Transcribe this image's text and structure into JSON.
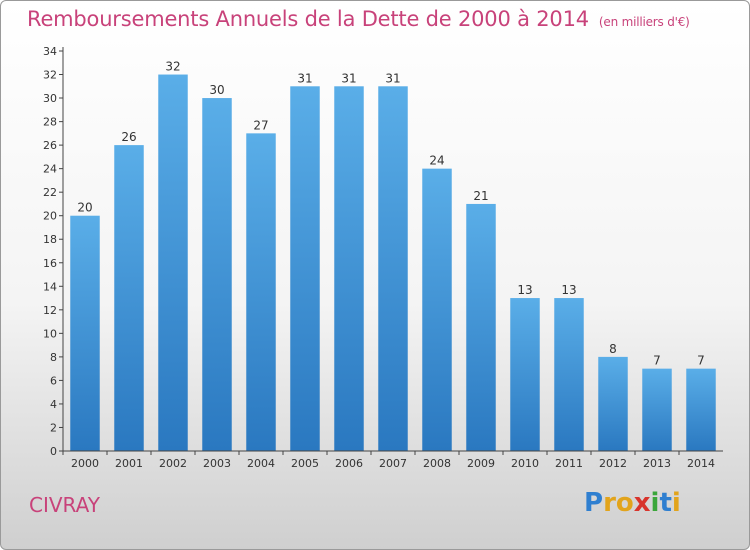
{
  "header": {
    "title": "Remboursements Annuels de la Dette de 2000 à 2014",
    "unit": "(en milliers d'€)"
  },
  "footer": {
    "commune": "CIVRAY",
    "logo_letters": [
      "P",
      "r",
      "o",
      "x",
      "i",
      "t",
      "i"
    ]
  },
  "colors": {
    "title": "#c8427a",
    "bar_top": "#5aaee8",
    "bar_bottom": "#2a78c0",
    "axis": "#444444",
    "text": "#333333"
  },
  "chart_data": {
    "type": "bar",
    "title": "Remboursements Annuels de la Dette de 2000 à 2014",
    "subtitle": "(en milliers d'€)",
    "xlabel": "",
    "ylabel": "",
    "categories": [
      "2000",
      "2001",
      "2002",
      "2003",
      "2004",
      "2005",
      "2006",
      "2007",
      "2008",
      "2009",
      "2010",
      "2011",
      "2012",
      "2013",
      "2014"
    ],
    "values": [
      20,
      26,
      32,
      30,
      27,
      31,
      31,
      31,
      24,
      21,
      13,
      13,
      8,
      7,
      7
    ],
    "ylim": [
      0,
      34
    ],
    "yticks": [
      0,
      2,
      4,
      6,
      8,
      10,
      12,
      14,
      16,
      18,
      20,
      22,
      24,
      26,
      28,
      30,
      32,
      34
    ],
    "grid": false,
    "legend": "none",
    "data_labels": true
  }
}
